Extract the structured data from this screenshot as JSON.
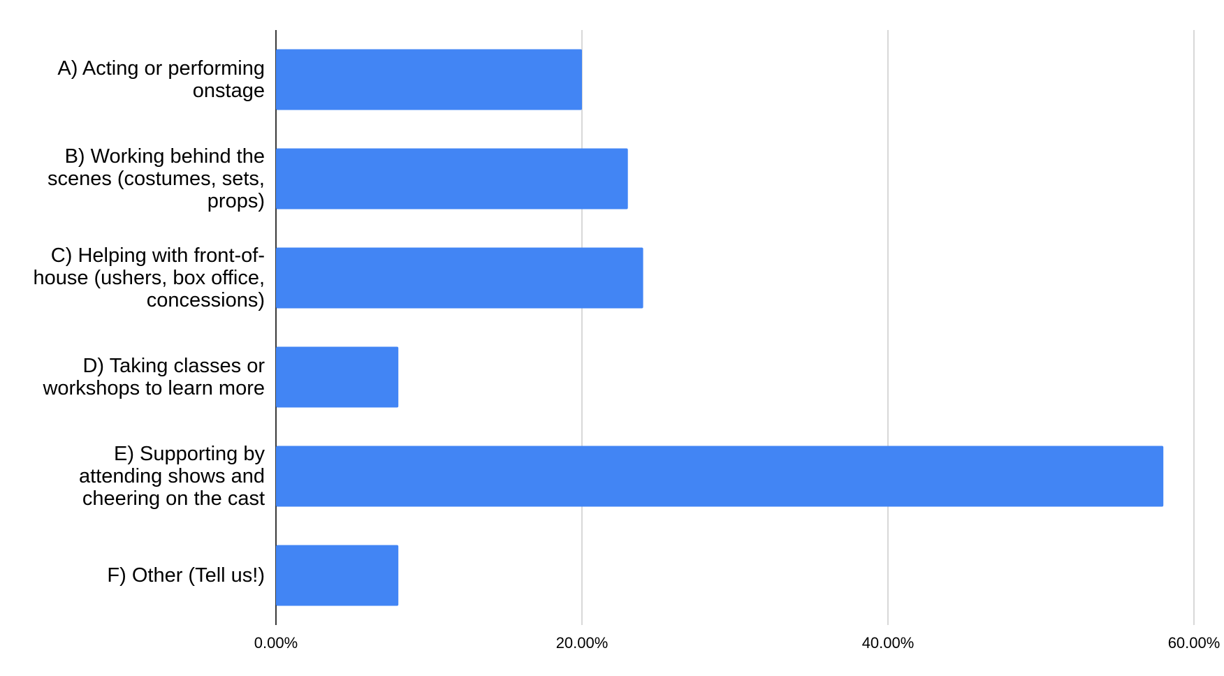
{
  "chart_data": {
    "type": "bar",
    "orientation": "horizontal",
    "categories": [
      "A) Acting or performing onstage",
      "B) Working behind the scenes (costumes, sets, props)",
      "C) Helping with front-of-house (ushers, box office, concessions)",
      "D) Taking classes or workshops to learn more",
      "E) Supporting by attending shows and cheering on the cast",
      "F) Other (Tell us!)"
    ],
    "values": [
      20,
      23,
      24,
      8,
      58,
      8
    ],
    "color": "#4285f4",
    "xlim": [
      0,
      60
    ],
    "xticks": [
      {
        "value": 0,
        "label": "0.00%"
      },
      {
        "value": 20,
        "label": "20.00%"
      },
      {
        "value": 40,
        "label": "40.00%"
      },
      {
        "value": 60,
        "label": "60.00%"
      }
    ],
    "grid": true
  }
}
